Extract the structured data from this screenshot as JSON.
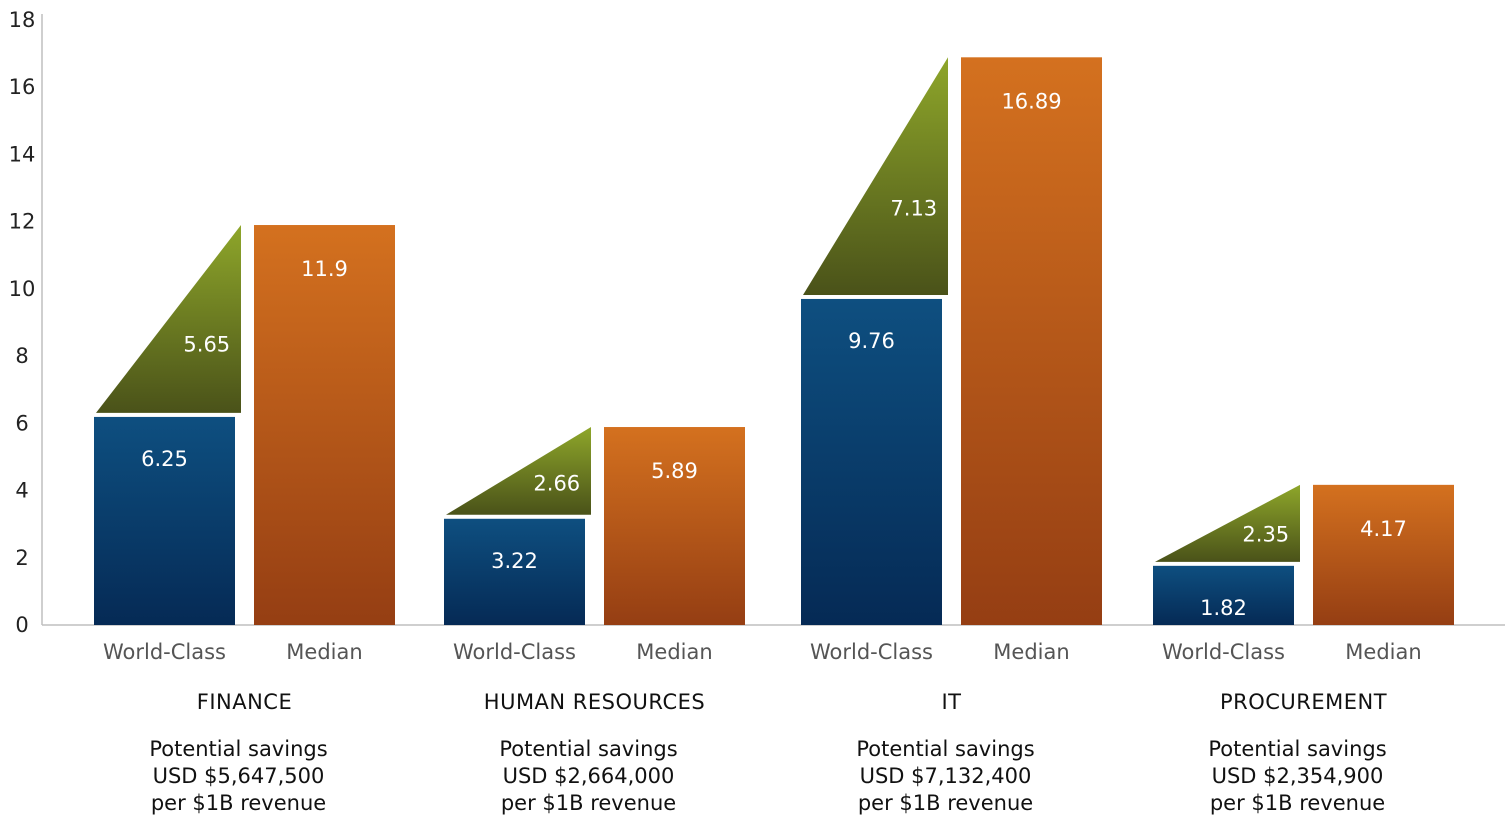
{
  "chart_data": {
    "type": "bar",
    "y_ticks": [
      "0",
      "2",
      "4",
      "6",
      "8",
      "10",
      "12",
      "14",
      "16",
      "18"
    ],
    "ylim": [
      0,
      18
    ],
    "grid": false,
    "groups": [
      {
        "name": "FINANCE",
        "bars": [
          {
            "label": "World-Class",
            "value": 6.25,
            "value_text": "6.25"
          },
          {
            "label": "Median",
            "value": 11.9,
            "value_text": "11.9"
          }
        ],
        "gap": {
          "value": 5.65,
          "value_text": "5.65"
        },
        "note": [
          "Potential savings",
          "USD $5,647,500",
          "per $1B revenue"
        ]
      },
      {
        "name": "HUMAN RESOURCES",
        "bars": [
          {
            "label": "World-Class",
            "value": 3.22,
            "value_text": "3.22"
          },
          {
            "label": "Median",
            "value": 5.89,
            "value_text": "5.89"
          }
        ],
        "gap": {
          "value": 2.66,
          "value_text": "2.66"
        },
        "note": [
          "Potential savings",
          "USD $2,664,000",
          "per $1B revenue"
        ]
      },
      {
        "name": "IT",
        "bars": [
          {
            "label": "World-Class",
            "value": 9.76,
            "value_text": "9.76"
          },
          {
            "label": "Median",
            "value": 16.89,
            "value_text": "16.89"
          }
        ],
        "gap": {
          "value": 7.13,
          "value_text": "7.13"
        },
        "note": [
          "Potential savings",
          "USD $7,132,400",
          "per $1B revenue"
        ]
      },
      {
        "name": "PROCUREMENT",
        "bars": [
          {
            "label": "World-Class",
            "value": 1.82,
            "value_text": "1.82"
          },
          {
            "label": "Median",
            "value": 4.17,
            "value_text": "4.17"
          }
        ],
        "gap": {
          "value": 2.35,
          "value_text": "2.35"
        },
        "note": [
          "Potential savings",
          "USD $2,354,900",
          "per $1B revenue"
        ]
      }
    ],
    "colors": {
      "world_class": [
        "#0e4f80",
        "#052a55"
      ],
      "median": [
        "#d4711f",
        "#953e13"
      ],
      "gap": [
        "#8ea62a",
        "#4a5219"
      ],
      "axis": "#bfbfbf"
    }
  }
}
